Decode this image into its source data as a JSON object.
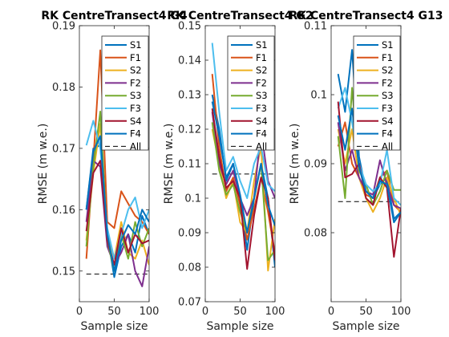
{
  "colors": {
    "S1": "#0072bd",
    "F1": "#d95319",
    "S2": "#edb120",
    "F2": "#7e2f8e",
    "S3": "#77ac30",
    "F3": "#4dbeee",
    "S4": "#a2142f",
    "F4": "#0072bd",
    "All": "#000000"
  },
  "legend_labels": [
    "S1",
    "F1",
    "S2",
    "F2",
    "S3",
    "F3",
    "S4",
    "F4",
    "All"
  ],
  "chart_data": [
    {
      "type": "line",
      "title": "RK CentreTransect4 G4",
      "xlabel": "Sample size",
      "ylabel": "RMSE (m w.e.)",
      "xlim": [
        0,
        100
      ],
      "ylim": [
        0.145,
        0.19
      ],
      "xticks": [
        "0",
        "50",
        "100"
      ],
      "yticks": [
        "0.15",
        "0.16",
        "0.17",
        "0.18",
        "0.19"
      ],
      "x": [
        10,
        20,
        30,
        40,
        50,
        60,
        70,
        80,
        90,
        100
      ],
      "all": 0.1495,
      "legend": "top-right",
      "series": [
        {
          "name": "S1",
          "values": [
            0.16,
            0.17,
            0.1705,
            0.156,
            0.149,
            0.154,
            0.156,
            0.153,
            0.159,
            0.156
          ]
        },
        {
          "name": "F1",
          "values": [
            0.152,
            0.168,
            0.186,
            0.158,
            0.157,
            0.163,
            0.161,
            0.159,
            0.158,
            0.156
          ]
        },
        {
          "name": "S2",
          "values": [
            0.155,
            0.166,
            0.174,
            0.156,
            0.152,
            0.158,
            0.153,
            0.152,
            0.155,
            0.151
          ]
        },
        {
          "name": "F2",
          "values": [
            0.158,
            0.168,
            0.167,
            0.154,
            0.151,
            0.153,
            0.156,
            0.15,
            0.1475,
            0.154
          ]
        },
        {
          "name": "S3",
          "values": [
            0.154,
            0.167,
            0.176,
            0.155,
            0.15,
            0.156,
            0.152,
            0.158,
            0.154,
            0.157
          ]
        },
        {
          "name": "F3",
          "values": [
            0.1705,
            0.1745,
            0.17,
            0.157,
            0.152,
            0.156,
            0.16,
            0.162,
            0.157,
            0.16
          ]
        },
        {
          "name": "S4",
          "values": [
            0.1565,
            0.166,
            0.168,
            0.155,
            0.151,
            0.157,
            0.153,
            0.156,
            0.1545,
            0.155
          ]
        },
        {
          "name": "F4",
          "values": [
            0.16,
            0.1695,
            0.172,
            0.156,
            0.15,
            0.155,
            0.1575,
            0.156,
            0.16,
            0.158
          ]
        }
      ]
    },
    {
      "type": "line",
      "title": "RK CentreTransect4 G2",
      "xlabel": "Sample size",
      "ylabel": "RMSE (m w.e.)",
      "xlim": [
        0,
        100
      ],
      "ylim": [
        0.07,
        0.15
      ],
      "xticks": [
        "0",
        "50",
        "100"
      ],
      "yticks": [
        "0.07",
        "0.08",
        "0.09",
        "0.1",
        "0.11",
        "0.12",
        "0.13",
        "0.14",
        "0.15"
      ],
      "x": [
        10,
        20,
        30,
        40,
        50,
        60,
        70,
        80,
        90,
        100
      ],
      "all": 0.107,
      "legend": "top-right",
      "series": [
        {
          "name": "S1",
          "values": [
            0.13,
            0.12,
            0.105,
            0.11,
            0.1,
            0.085,
            0.1,
            0.11,
            0.1,
            0.08
          ]
        },
        {
          "name": "F1",
          "values": [
            0.136,
            0.115,
            0.102,
            0.106,
            0.098,
            0.088,
            0.097,
            0.106,
            0.096,
            0.084
          ]
        },
        {
          "name": "S2",
          "values": [
            0.12,
            0.11,
            0.1,
            0.105,
            0.093,
            0.09,
            0.105,
            0.115,
            0.079,
            0.094
          ]
        },
        {
          "name": "F2",
          "values": [
            0.125,
            0.11,
            0.104,
            0.108,
            0.1,
            0.095,
            0.1,
            0.12,
            0.105,
            0.1
          ]
        },
        {
          "name": "S3",
          "values": [
            0.122,
            0.108,
            0.101,
            0.104,
            0.096,
            0.09,
            0.1,
            0.11,
            0.082,
            0.085
          ]
        },
        {
          "name": "F3",
          "values": [
            0.145,
            0.125,
            0.108,
            0.112,
            0.105,
            0.1,
            0.11,
            0.115,
            0.104,
            0.102
          ]
        },
        {
          "name": "S4",
          "values": [
            0.126,
            0.112,
            0.103,
            0.105,
            0.1,
            0.0795,
            0.095,
            0.106,
            0.1,
            0.082
          ]
        },
        {
          "name": "F4",
          "values": [
            0.128,
            0.118,
            0.106,
            0.11,
            0.101,
            0.09,
            0.1,
            0.11,
            0.098,
            0.092
          ]
        }
      ]
    },
    {
      "type": "line",
      "title": "RK CentreTransect4 G13",
      "xlabel": "Sample size",
      "ylabel": "RMSE (m w.e.)",
      "xlim": [
        0,
        100
      ],
      "ylim": [
        0.07,
        0.11
      ],
      "xticks": [
        "0",
        "50",
        "100"
      ],
      "yticks": [
        "0.08",
        "0.09",
        "0.1",
        "0.11"
      ],
      "x": [
        10,
        20,
        30,
        40,
        50,
        60,
        70,
        80,
        90,
        100
      ],
      "all": 0.0845,
      "legend": "top-right",
      "series": [
        {
          "name": "S1",
          "values": [
            0.103,
            0.0975,
            0.1065,
            0.091,
            0.086,
            0.085,
            0.087,
            0.088,
            0.082,
            0.083
          ]
        },
        {
          "name": "F1",
          "values": [
            0.0925,
            0.096,
            0.09,
            0.088,
            0.0855,
            0.085,
            0.088,
            0.089,
            0.084,
            0.083
          ]
        },
        {
          "name": "S2",
          "values": [
            0.095,
            0.09,
            0.095,
            0.088,
            0.085,
            0.083,
            0.085,
            0.088,
            0.085,
            0.0825
          ]
        },
        {
          "name": "F2",
          "values": [
            0.096,
            0.089,
            0.092,
            0.088,
            0.086,
            0.0855,
            0.0905,
            0.087,
            0.084,
            0.0835
          ]
        },
        {
          "name": "S3",
          "values": [
            0.094,
            0.085,
            0.101,
            0.089,
            0.087,
            0.084,
            0.086,
            0.089,
            0.0862,
            0.0862
          ]
        },
        {
          "name": "F3",
          "values": [
            0.098,
            0.101,
            0.096,
            0.09,
            0.087,
            0.086,
            0.087,
            0.092,
            0.085,
            0.084
          ]
        },
        {
          "name": "S4",
          "values": [
            0.099,
            0.088,
            0.0885,
            0.09,
            0.085,
            0.084,
            0.088,
            0.0865,
            0.0765,
            0.0835
          ]
        },
        {
          "name": "F4",
          "values": [
            0.097,
            0.092,
            0.098,
            0.0895,
            0.086,
            0.085,
            0.0875,
            0.087,
            0.0815,
            0.083
          ]
        }
      ]
    }
  ]
}
